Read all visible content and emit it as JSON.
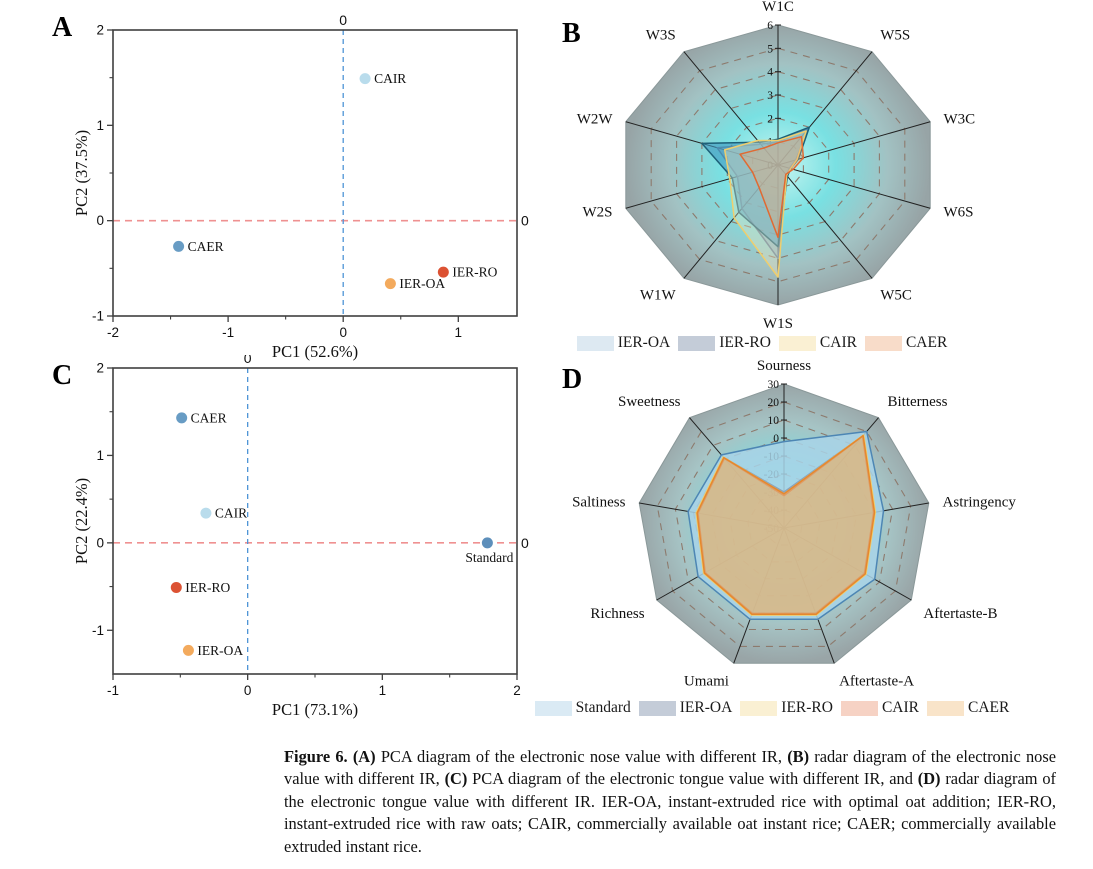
{
  "figure": {
    "panel_labels": {
      "A": "A",
      "B": "B",
      "C": "C",
      "D": "D"
    }
  },
  "caption": {
    "runs": [
      {
        "t": "Figure 6. ",
        "b": true
      },
      {
        "t": "(A)",
        "b": true
      },
      {
        "t": " PCA diagram of the electronic nose value with different IR, ",
        "b": false
      },
      {
        "t": "(B)",
        "b": true
      },
      {
        "t": " radar diagram of the electronic nose value with different IR, ",
        "b": false
      },
      {
        "t": "(C)",
        "b": true
      },
      {
        "t": " PCA diagram of the electronic tongue value with different IR, and ",
        "b": false
      },
      {
        "t": "(D)",
        "b": true
      },
      {
        "t": " radar diagram of the electronic tongue value with different IR. IER-OA, instant-extruded rice with optimal oat addition; IER-RO, instant-extruded rice with raw oats; CAIR, commercially available oat instant rice; CAER; commercially available extruded instant rice.",
        "b": false
      }
    ]
  },
  "chart_data": [
    {
      "id": "A",
      "type": "scatter",
      "title": "PCA diagram of the electronic nose value",
      "xlabel": "PC1 (52.6%)",
      "ylabel": "PC2 (37.5%)",
      "xlim": [
        -2,
        1.51
      ],
      "ylim": [
        -1,
        2
      ],
      "xticks": [
        -2,
        -1,
        0,
        1
      ],
      "yticks": [
        -1,
        0,
        1,
        2
      ],
      "minor_step": 0.5,
      "zero_label_top": "0",
      "zero_label_right": "0",
      "vline_color": "#4e94d6",
      "hline_color": "#ef9191",
      "points": [
        {
          "label": "CAIR",
          "x": 0.19,
          "y": 1.49,
          "color": "#b9dcec",
          "label_pos": "right"
        },
        {
          "label": "CAER",
          "x": -1.43,
          "y": -0.27,
          "color": "#689cc4",
          "label_pos": "right"
        },
        {
          "label": "IER-RO",
          "x": 0.87,
          "y": -0.54,
          "color": "#dc5233",
          "label_pos": "right"
        },
        {
          "label": "IER-OA",
          "x": 0.41,
          "y": -0.66,
          "color": "#f3aa5d",
          "label_pos": "right"
        }
      ]
    },
    {
      "id": "B",
      "type": "radar",
      "title": "radar diagram of the electronic nose value",
      "axes": [
        "W1C",
        "W5S",
        "W3C",
        "W6S",
        "W5C",
        "W1S",
        "W1W",
        "W2S",
        "W2W",
        "W3S"
      ],
      "rmin": 0,
      "rmax": 6,
      "tick_values": [
        6,
        5,
        4,
        3,
        2,
        1,
        0
      ],
      "grid_color": "#8d7a6d",
      "bg_gradient": [
        "#c8f6f1",
        "#79e0e2",
        "#a2c2c3",
        "#97a4a6"
      ],
      "series": [
        {
          "name": "IER-RO",
          "values": [
            1.0,
            1.9,
            0.7,
            0.45,
            0.55,
            4.0,
            2.3,
            1.6,
            2.4,
            1.1
          ],
          "stroke": "#5f7d98",
          "fill": "#8aa3bb",
          "fill_opacity": 0.5,
          "legend_color": "#c4ccd8"
        },
        {
          "name": "IER-OA",
          "values": [
            1.1,
            2.0,
            0.8,
            0.5,
            0.6,
            3.5,
            2.5,
            1.8,
            3.0,
            1.2
          ],
          "stroke": "#1d6078",
          "fill": "#3f97bf",
          "fill_opacity": 0.6,
          "legend_color": "#dde9f2"
        },
        {
          "name": "CAIR",
          "values": [
            1.05,
            1.8,
            0.75,
            0.5,
            0.55,
            4.8,
            2.8,
            1.9,
            2.1,
            1.3
          ],
          "stroke": "#efce6d",
          "fill": "#f5e9bd",
          "fill_opacity": 0.35,
          "legend_color": "#faf0d3"
        },
        {
          "name": "CAER",
          "values": [
            0.95,
            1.5,
            1.0,
            0.6,
            0.5,
            3.1,
            1.2,
            1.0,
            1.5,
            0.9
          ],
          "stroke": "#e06a33",
          "fill": "#eda671",
          "fill_opacity": 0.35,
          "legend_color": "#f8dcc9"
        }
      ],
      "legend_order": [
        "IER-OA",
        "IER-RO",
        "CAIR",
        "CAER"
      ]
    },
    {
      "id": "C",
      "type": "scatter",
      "title": "PCA diagram of the electronic tongue value",
      "xlabel": "PC1 (73.1%)",
      "ylabel": "PC2 (22.4%)",
      "xlim": [
        -1,
        2
      ],
      "ylim": [
        -1.5,
        2
      ],
      "xticks": [
        -1,
        0,
        1,
        2
      ],
      "yticks": [
        -1,
        0,
        1,
        2
      ],
      "minor_step": 0.5,
      "zero_label_top": "0",
      "zero_label_right": "0",
      "vline_color": "#4e94d6",
      "hline_color": "#ef9191",
      "points": [
        {
          "label": "CAER",
          "x": -0.49,
          "y": 1.43,
          "color": "#689cc4",
          "label_pos": "right"
        },
        {
          "label": "CAIR",
          "x": -0.31,
          "y": 0.34,
          "color": "#b9dcec",
          "label_pos": "right"
        },
        {
          "label": "Standard",
          "x": 1.78,
          "y": 0.0,
          "color": "#5d8fbb",
          "label_pos": "below"
        },
        {
          "label": "IER-RO",
          "x": -0.53,
          "y": -0.51,
          "color": "#dc5233",
          "label_pos": "right"
        },
        {
          "label": "IER-OA",
          "x": -0.44,
          "y": -1.23,
          "color": "#f3aa5d",
          "label_pos": "right"
        }
      ]
    },
    {
      "id": "D",
      "type": "radar",
      "title": "radar diagram of the electronic tongue value",
      "axes": [
        "Sourness",
        "Bitterness",
        "Astringency",
        "Aftertaste-B",
        "Aftertaste-A",
        "Umami",
        "Richness",
        "Saltiness",
        "Sweetness"
      ],
      "rmin": -50,
      "rmax": 30,
      "tick_values": [
        30,
        20,
        10,
        0,
        -10,
        -20,
        -30,
        -40,
        -50
      ],
      "grid_color": "#8d7a6d",
      "bg_gradient": [
        "#c2f0ec",
        "#7cdce0",
        "#a6c4c5",
        "#99a5a7"
      ],
      "series": [
        {
          "name": "Standard",
          "values": [
            -2,
            20,
            5,
            7,
            4,
            4,
            4,
            3,
            3
          ],
          "stroke": "#4d86b4",
          "fill": "#a9d3e8",
          "fill_opacity": 0.85,
          "legend_color": "#daeaf4"
        },
        {
          "name": "IER-OA",
          "values": [
            -30,
            17,
            0,
            1,
            1,
            1,
            0,
            -2,
            1
          ],
          "stroke": "#8ba3ba",
          "fill": "#9fb4c6",
          "fill_opacity": 0.2,
          "legend_color": "#c4ccd8"
        },
        {
          "name": "IER-RO",
          "values": [
            -31,
            17.5,
            0.5,
            1.5,
            1.5,
            1.5,
            0.5,
            -1.5,
            1.5
          ],
          "stroke": "#efce6d",
          "fill": "#f2e2ae",
          "fill_opacity": 0.3,
          "legend_color": "#faf0d3"
        },
        {
          "name": "CAIR",
          "values": [
            -32,
            16.5,
            -0.5,
            0.5,
            0.5,
            0.5,
            -0.5,
            -2.5,
            0.5
          ],
          "stroke": "#e08a68",
          "fill": "#eab393",
          "fill_opacity": 0.3,
          "legend_color": "#f6d2c4"
        },
        {
          "name": "CAER",
          "values": [
            -31,
            17,
            0,
            1,
            1,
            1,
            0,
            -2,
            1
          ],
          "stroke": "#e5882e",
          "fill": "#dcae65",
          "fill_opacity": 0.5,
          "legend_color": "#f9e4c9"
        }
      ],
      "legend_order": [
        "Standard",
        "IER-OA",
        "IER-RO",
        "CAIR",
        "CAER"
      ]
    }
  ]
}
